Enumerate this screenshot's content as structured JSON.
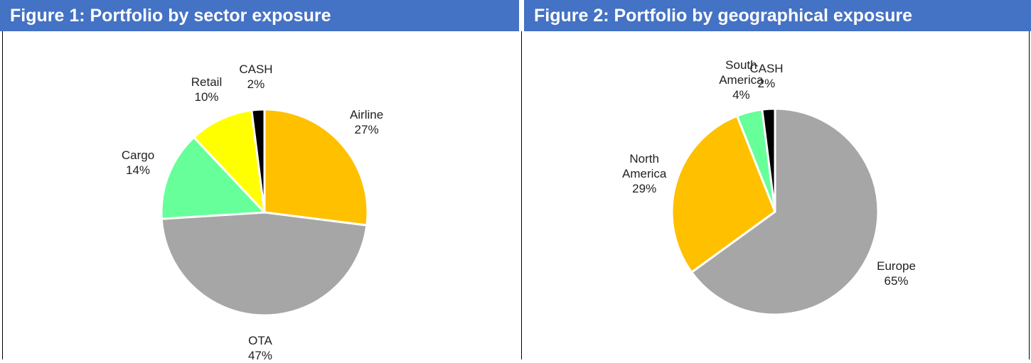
{
  "chart_data": [
    {
      "type": "pie",
      "title": "Figure 1: Portfolio by sector exposure",
      "categories": [
        "Airline",
        "OTA",
        "Cargo",
        "Retail",
        "CASH"
      ],
      "values": [
        27,
        47,
        14,
        10,
        2
      ],
      "value_labels": [
        "27%",
        "47%",
        "14%",
        "10%",
        "2%"
      ],
      "colors": [
        "#FFC000",
        "#A6A6A6",
        "#66FF99",
        "#FFFF00",
        "#000000"
      ]
    },
    {
      "type": "pie",
      "title": "Figure 2: Portfolio by geographical exposure",
      "categories": [
        "Europe",
        "North America",
        "South America",
        "CASH"
      ],
      "values": [
        65,
        29,
        4,
        2
      ],
      "value_labels": [
        "65%",
        "29%",
        "4%",
        "2%"
      ],
      "colors": [
        "#A6A6A6",
        "#FFC000",
        "#66FF99",
        "#000000"
      ]
    }
  ]
}
